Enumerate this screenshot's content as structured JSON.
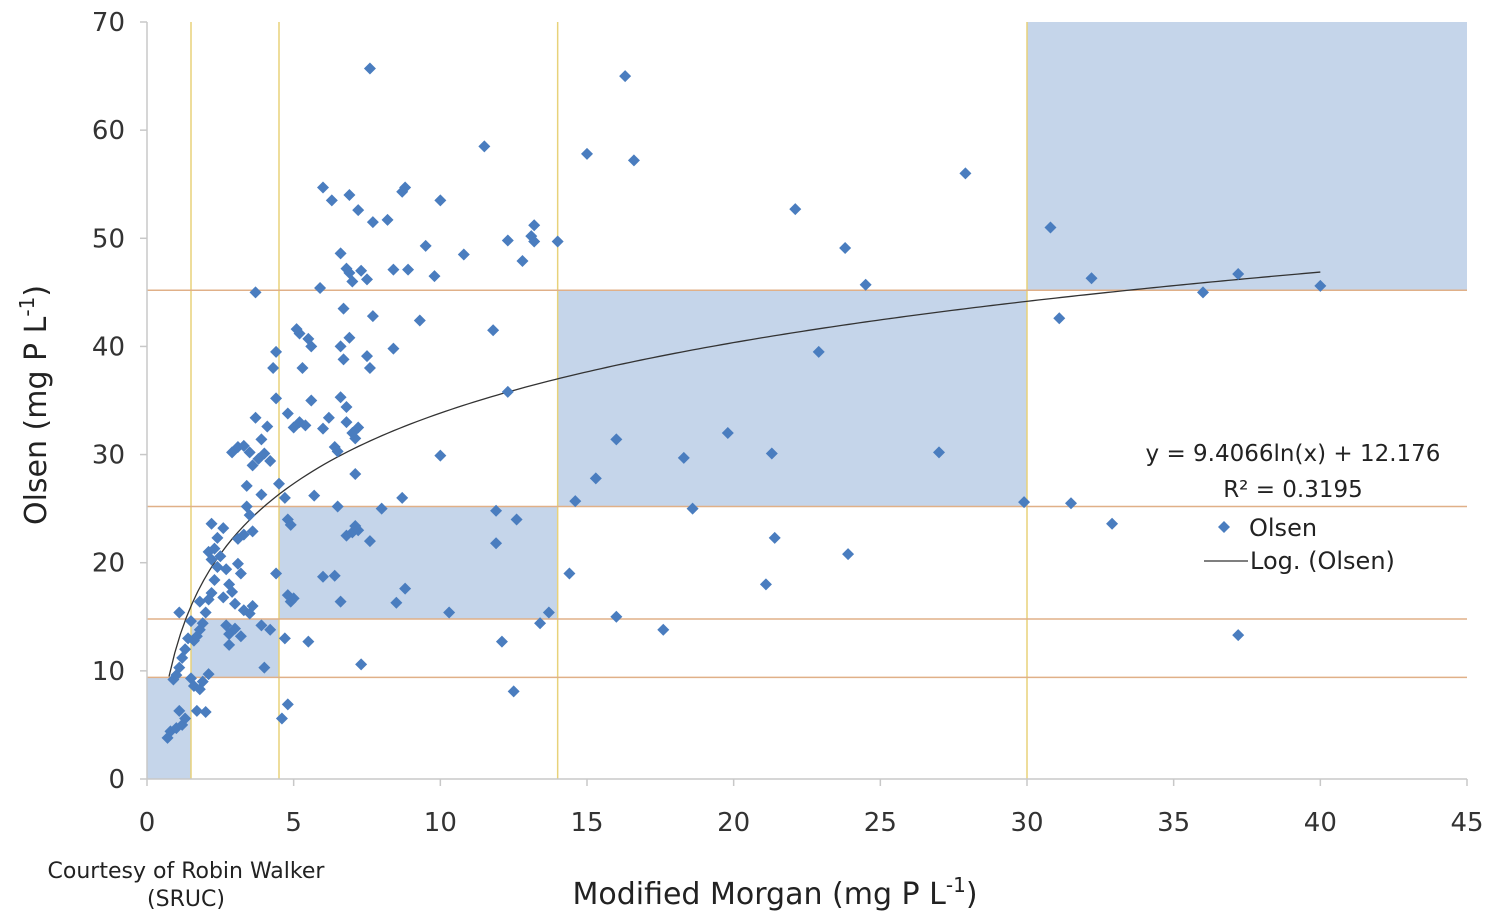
{
  "chart_data": {
    "type": "scatter",
    "xlabel": "Modified Morgan (mg P L",
    "xlabel_sup": "-1",
    "xlabel_end": ")",
    "ylabel": "Olsen (mg P L",
    "ylabel_sup": "-1",
    "ylabel_end": ")",
    "xlim": [
      0,
      45
    ],
    "ylim": [
      0,
      70
    ],
    "xticks": [
      0,
      5,
      10,
      15,
      20,
      25,
      30,
      35,
      40,
      45
    ],
    "yticks": [
      0,
      10,
      20,
      30,
      40,
      50,
      60,
      70
    ],
    "grid": false,
    "vertical_guides": [
      1.5,
      4.5,
      14,
      30
    ],
    "horizontal_guides": [
      9.4,
      14.8,
      25.2,
      45.2
    ],
    "shaded_regions": [
      {
        "x": [
          0,
          1.5
        ],
        "y": [
          0,
          9.4
        ]
      },
      {
        "x": [
          1.5,
          4.5
        ],
        "y": [
          9.4,
          14.8
        ]
      },
      {
        "x": [
          4.5,
          14
        ],
        "y": [
          14.8,
          25.2
        ]
      },
      {
        "x": [
          14,
          30
        ],
        "y": [
          25.2,
          45.2
        ]
      },
      {
        "x": [
          30,
          45
        ],
        "y": [
          45.2,
          70
        ]
      }
    ],
    "series": [
      {
        "name": "Olsen",
        "marker": "diamond",
        "color": "#4a7dbf",
        "points": [
          [
            0.7,
            3.8
          ],
          [
            0.8,
            4.4
          ],
          [
            1.0,
            4.7
          ],
          [
            1.2,
            5.0
          ],
          [
            1.3,
            5.6
          ],
          [
            1.1,
            6.3
          ],
          [
            0.9,
            9.2
          ],
          [
            1.0,
            9.6
          ],
          [
            1.1,
            10.3
          ],
          [
            1.2,
            11.2
          ],
          [
            1.3,
            12.0
          ],
          [
            1.4,
            13.0
          ],
          [
            1.5,
            9.3
          ],
          [
            1.5,
            14.6
          ],
          [
            1.1,
            15.4
          ],
          [
            1.6,
            8.6
          ],
          [
            1.8,
            8.3
          ],
          [
            1.9,
            9.0
          ],
          [
            2.1,
            9.7
          ],
          [
            1.7,
            6.3
          ],
          [
            2.0,
            6.2
          ],
          [
            1.6,
            12.8
          ],
          [
            1.7,
            13.2
          ],
          [
            1.8,
            13.8
          ],
          [
            1.9,
            14.4
          ],
          [
            2.0,
            15.4
          ],
          [
            2.1,
            16.6
          ],
          [
            1.8,
            16.4
          ],
          [
            2.2,
            17.2
          ],
          [
            2.3,
            18.4
          ],
          [
            2.4,
            19.6
          ],
          [
            2.2,
            20.3
          ],
          [
            2.1,
            21.0
          ],
          [
            2.3,
            21.3
          ],
          [
            2.5,
            20.6
          ],
          [
            2.4,
            22.3
          ],
          [
            2.2,
            23.6
          ],
          [
            2.6,
            23.2
          ],
          [
            2.7,
            19.4
          ],
          [
            2.8,
            18.0
          ],
          [
            2.6,
            16.8
          ],
          [
            2.9,
            17.3
          ],
          [
            3.0,
            16.2
          ],
          [
            2.7,
            14.2
          ],
          [
            2.8,
            13.4
          ],
          [
            3.0,
            13.9
          ],
          [
            3.2,
            13.2
          ],
          [
            2.8,
            12.4
          ],
          [
            3.1,
            19.9
          ],
          [
            3.2,
            19.0
          ],
          [
            3.3,
            22.6
          ],
          [
            3.1,
            22.2
          ],
          [
            3.4,
            25.2
          ],
          [
            3.5,
            24.4
          ],
          [
            3.6,
            22.9
          ],
          [
            3.3,
            15.6
          ],
          [
            3.5,
            15.3
          ],
          [
            3.6,
            16.0
          ],
          [
            3.9,
            14.2
          ],
          [
            4.0,
            10.3
          ],
          [
            4.2,
            13.8
          ],
          [
            2.9,
            30.2
          ],
          [
            3.1,
            30.7
          ],
          [
            3.3,
            30.8
          ],
          [
            3.5,
            30.2
          ],
          [
            3.6,
            29.0
          ],
          [
            3.8,
            29.6
          ],
          [
            3.9,
            26.3
          ],
          [
            3.7,
            33.4
          ],
          [
            3.4,
            27.1
          ],
          [
            3.9,
            31.4
          ],
          [
            4.0,
            30.1
          ],
          [
            4.2,
            29.4
          ],
          [
            4.1,
            32.6
          ],
          [
            4.4,
            35.2
          ],
          [
            4.3,
            38.0
          ],
          [
            4.4,
            39.5
          ],
          [
            3.7,
            45.0
          ],
          [
            4.5,
            27.3
          ],
          [
            4.7,
            26.0
          ],
          [
            4.8,
            24.0
          ],
          [
            4.4,
            19.0
          ],
          [
            4.8,
            17.0
          ],
          [
            4.9,
            16.4
          ],
          [
            5.0,
            16.7
          ],
          [
            4.7,
            13.0
          ],
          [
            4.6,
            5.6
          ],
          [
            4.8,
            6.9
          ],
          [
            5.5,
            12.7
          ],
          [
            4.9,
            23.5
          ],
          [
            5.0,
            32.5
          ],
          [
            5.2,
            33.0
          ],
          [
            5.4,
            32.7
          ],
          [
            4.8,
            33.8
          ],
          [
            5.3,
            38.0
          ],
          [
            5.6,
            40.0
          ],
          [
            5.5,
            40.7
          ],
          [
            5.2,
            41.2
          ],
          [
            5.6,
            35.0
          ],
          [
            5.1,
            41.6
          ],
          [
            5.7,
            26.2
          ],
          [
            5.9,
            45.4
          ],
          [
            6.0,
            54.7
          ],
          [
            6.3,
            53.5
          ],
          [
            6.2,
            33.4
          ],
          [
            6.0,
            32.4
          ],
          [
            6.4,
            30.7
          ],
          [
            6.5,
            30.3
          ],
          [
            6.6,
            35.3
          ],
          [
            6.8,
            34.4
          ],
          [
            6.7,
            38.8
          ],
          [
            6.6,
            40.0
          ],
          [
            6.9,
            40.8
          ],
          [
            6.8,
            33.0
          ],
          [
            7.0,
            32.0
          ],
          [
            7.1,
            31.5
          ],
          [
            7.2,
            32.5
          ],
          [
            7.0,
            22.8
          ],
          [
            6.8,
            22.5
          ],
          [
            7.1,
            23.4
          ],
          [
            7.2,
            23.0
          ],
          [
            6.5,
            25.2
          ],
          [
            6.6,
            48.6
          ],
          [
            6.8,
            47.2
          ],
          [
            6.9,
            46.8
          ],
          [
            7.0,
            46.0
          ],
          [
            6.7,
            43.5
          ],
          [
            7.3,
            47.0
          ],
          [
            7.5,
            46.2
          ],
          [
            7.7,
            42.8
          ],
          [
            7.5,
            39.1
          ],
          [
            7.6,
            38.0
          ],
          [
            7.1,
            28.2
          ],
          [
            6.6,
            16.4
          ],
          [
            6.0,
            18.7
          ],
          [
            6.4,
            18.8
          ],
          [
            7.3,
            10.6
          ],
          [
            7.6,
            22.0
          ],
          [
            6.9,
            54.0
          ],
          [
            7.2,
            52.6
          ],
          [
            7.7,
            51.5
          ],
          [
            7.6,
            65.7
          ],
          [
            8.2,
            51.7
          ],
          [
            8.7,
            54.3
          ],
          [
            8.8,
            54.7
          ],
          [
            8.4,
            47.1
          ],
          [
            8.9,
            47.1
          ],
          [
            8.4,
            39.8
          ],
          [
            8.0,
            25.0
          ],
          [
            8.7,
            26.0
          ],
          [
            8.8,
            17.6
          ],
          [
            8.5,
            16.3
          ],
          [
            9.5,
            49.3
          ],
          [
            9.8,
            46.5
          ],
          [
            9.3,
            42.4
          ],
          [
            10.0,
            53.5
          ],
          [
            10.0,
            29.9
          ],
          [
            10.3,
            15.4
          ],
          [
            10.8,
            48.5
          ],
          [
            11.5,
            58.5
          ],
          [
            11.8,
            41.5
          ],
          [
            11.9,
            24.8
          ],
          [
            11.9,
            21.8
          ],
          [
            12.1,
            12.7
          ],
          [
            12.3,
            49.8
          ],
          [
            12.3,
            35.8
          ],
          [
            12.5,
            8.1
          ],
          [
            12.6,
            24.0
          ],
          [
            12.8,
            47.9
          ],
          [
            13.1,
            50.2
          ],
          [
            13.2,
            51.2
          ],
          [
            13.2,
            49.7
          ],
          [
            13.4,
            14.4
          ],
          [
            13.7,
            15.4
          ],
          [
            14.0,
            49.7
          ],
          [
            14.4,
            19.0
          ],
          [
            14.6,
            25.7
          ],
          [
            15.0,
            57.8
          ],
          [
            15.3,
            27.8
          ],
          [
            16.0,
            31.4
          ],
          [
            16.0,
            15.0
          ],
          [
            16.3,
            65.0
          ],
          [
            16.6,
            57.2
          ],
          [
            17.6,
            13.8
          ],
          [
            18.3,
            29.7
          ],
          [
            18.6,
            25.0
          ],
          [
            19.8,
            32.0
          ],
          [
            21.1,
            18.0
          ],
          [
            21.3,
            30.1
          ],
          [
            21.4,
            22.3
          ],
          [
            22.1,
            52.7
          ],
          [
            22.9,
            39.5
          ],
          [
            23.8,
            49.1
          ],
          [
            23.9,
            20.8
          ],
          [
            24.5,
            45.7
          ],
          [
            27.0,
            30.2
          ],
          [
            27.9,
            56.0
          ],
          [
            29.9,
            25.6
          ],
          [
            30.8,
            51.0
          ],
          [
            31.1,
            42.6
          ],
          [
            31.5,
            25.5
          ],
          [
            32.2,
            46.3
          ],
          [
            32.9,
            23.6
          ],
          [
            36.0,
            45.0
          ],
          [
            37.2,
            46.7
          ],
          [
            37.2,
            13.3
          ],
          [
            40.0,
            45.6
          ]
        ]
      }
    ],
    "trendline": {
      "name": "Log. (Olsen)",
      "type": "logarithmic",
      "a": 9.4066,
      "b": 12.176,
      "x_range": [
        0.75,
        40
      ],
      "equation": "y = 9.4066ln(x) + 12.176",
      "r2": "R² = 0.3195"
    },
    "legend": [
      "Olsen",
      "Log. (Olsen)"
    ],
    "legend_position": "right",
    "colors": {
      "marker": "#4a7dbf",
      "shade": "#c5d5ea",
      "vertical_guide": "#e8d27a",
      "horizontal_guide": "#e0b088",
      "axis": "#c8c8c8",
      "trendline": "#333333"
    }
  },
  "credit": {
    "line1": "Courtesy of Robin Walker",
    "line2": "(SRUC)"
  }
}
